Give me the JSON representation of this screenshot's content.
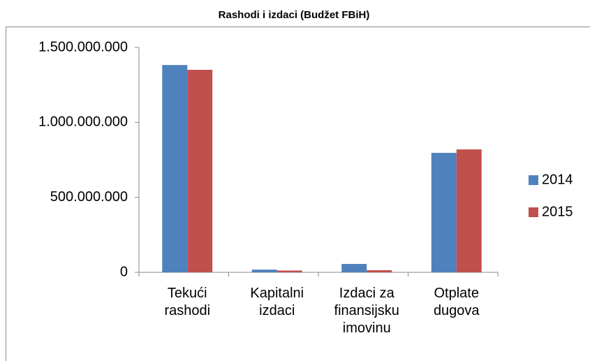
{
  "chart_data": {
    "type": "bar",
    "title": "Rashodi i izdaci (Budžet FBiH)",
    "categories": [
      "Tekući rashodi",
      "Kapitalni izdaci",
      "Izdaci za finansijsku imovinu",
      "Otplate dugova"
    ],
    "series": [
      {
        "name": "2014",
        "color": "#4f81bd",
        "values": [
          1383000000,
          18000000,
          56000000,
          797000000
        ]
      },
      {
        "name": "2015",
        "color": "#c0504d",
        "values": [
          1351000000,
          12000000,
          14000000,
          820000000
        ]
      }
    ],
    "ylim": [
      0,
      1500000000
    ],
    "yticks": [
      0,
      {
        "value": 500000000,
        "label": "500.000.000"
      },
      {
        "value": 1000000000,
        "label": "1.000.000.000"
      },
      {
        "value": 1500000000,
        "label": "1.500.000.000"
      }
    ],
    "grid": false,
    "legend": "right"
  }
}
